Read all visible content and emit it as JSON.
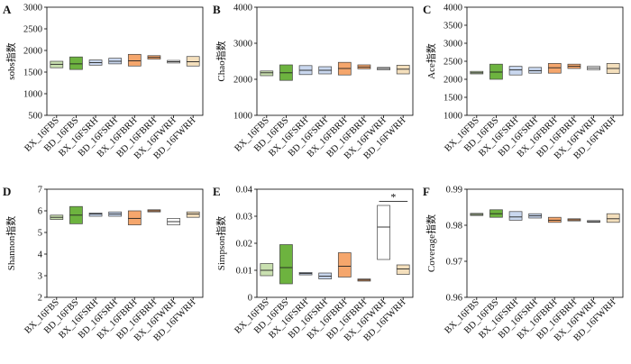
{
  "style": {
    "colors": {
      "lightgreen": "#c9e0b0",
      "green": "#6db33f",
      "lightblue": "#c9d7ee",
      "orange": "#f5a66c",
      "whitebox": "#ffffff",
      "beige": "#f4dfbc",
      "outline": "#444444",
      "median": "#222222"
    }
  },
  "chart_data": [
    {
      "type": "box",
      "panel_label": "A",
      "ylabel": "sobs指数",
      "ylim": [
        500,
        3000
      ],
      "yticks": [
        "500",
        "1000",
        "1500",
        "2000",
        "2500",
        "3000"
      ],
      "categories": [
        "BX_16FBS",
        "BD_16FBS",
        "BX_16FSRH",
        "BD_16FSRH",
        "BX_16FBRH",
        "BD_16FBRH",
        "BX_16FWRH",
        "BD_16FWRH"
      ],
      "boxes": [
        {
          "q1": 1600,
          "median": 1680,
          "q3": 1750,
          "color": "lightgreen"
        },
        {
          "q1": 1560,
          "median": 1690,
          "q3": 1850,
          "color": "green"
        },
        {
          "q1": 1660,
          "median": 1720,
          "q3": 1780,
          "color": "lightblue"
        },
        {
          "q1": 1690,
          "median": 1750,
          "q3": 1820,
          "color": "lightblue"
        },
        {
          "q1": 1640,
          "median": 1760,
          "q3": 1910,
          "color": "orange"
        },
        {
          "q1": 1800,
          "median": 1840,
          "q3": 1880,
          "color": "orange"
        },
        {
          "q1": 1710,
          "median": 1740,
          "q3": 1770,
          "color": "whitebox"
        },
        {
          "q1": 1640,
          "median": 1740,
          "q3": 1860,
          "color": "beige"
        }
      ]
    },
    {
      "type": "box",
      "panel_label": "B",
      "ylabel": "Chao指数",
      "ylim": [
        1000,
        4000
      ],
      "yticks": [
        "1000",
        "2000",
        "3000",
        "4000"
      ],
      "categories": [
        "BX_16FBS",
        "BD_16FBS",
        "BX_16FSRH",
        "BD_16FSRH",
        "BX_16FBRH",
        "BD_16FBRH",
        "BX_16FWRH",
        "BD_16FWRH"
      ],
      "boxes": [
        {
          "q1": 2100,
          "median": 2180,
          "q3": 2230,
          "color": "lightgreen"
        },
        {
          "q1": 1970,
          "median": 2180,
          "q3": 2400,
          "color": "green"
        },
        {
          "q1": 2130,
          "median": 2250,
          "q3": 2380,
          "color": "lightblue"
        },
        {
          "q1": 2150,
          "median": 2250,
          "q3": 2350,
          "color": "lightblue"
        },
        {
          "q1": 2120,
          "median": 2300,
          "q3": 2470,
          "color": "orange"
        },
        {
          "q1": 2290,
          "median": 2340,
          "q3": 2400,
          "color": "orange"
        },
        {
          "q1": 2260,
          "median": 2300,
          "q3": 2330,
          "color": "whitebox"
        },
        {
          "q1": 2150,
          "median": 2280,
          "q3": 2390,
          "color": "beige"
        }
      ]
    },
    {
      "type": "box",
      "panel_label": "C",
      "ylabel": "Ace指数",
      "ylim": [
        1000,
        4000
      ],
      "yticks": [
        "1000",
        "1500",
        "2000",
        "2500",
        "3000",
        "3500",
        "4000"
      ],
      "categories": [
        "BX_16FBS",
        "BD_16FBS",
        "BX_16FSRH",
        "BD_16FSRH",
        "BX_16FBRH",
        "BD_16FBRH",
        "BX_16FWRH",
        "BD_16FWRH"
      ],
      "boxes": [
        {
          "q1": 2150,
          "median": 2180,
          "q3": 2220,
          "color": "lightgreen"
        },
        {
          "q1": 2000,
          "median": 2200,
          "q3": 2420,
          "color": "green"
        },
        {
          "q1": 2120,
          "median": 2260,
          "q3": 2360,
          "color": "lightblue"
        },
        {
          "q1": 2170,
          "median": 2240,
          "q3": 2330,
          "color": "lightblue"
        },
        {
          "q1": 2170,
          "median": 2320,
          "q3": 2440,
          "color": "orange"
        },
        {
          "q1": 2300,
          "median": 2360,
          "q3": 2420,
          "color": "orange"
        },
        {
          "q1": 2260,
          "median": 2310,
          "q3": 2360,
          "color": "whitebox"
        },
        {
          "q1": 2160,
          "median": 2300,
          "q3": 2440,
          "color": "beige"
        }
      ]
    },
    {
      "type": "box",
      "panel_label": "D",
      "ylabel": "Shannon指数",
      "ylim": [
        2,
        7
      ],
      "yticks": [
        "2",
        "3",
        "4",
        "5",
        "6",
        "7"
      ],
      "categories": [
        "BX_16FBS",
        "BD_16FBS",
        "BX_16FSRH",
        "BD_16FSRH",
        "BX_16FBRH",
        "BD_16FBRH",
        "BX_16FWRH",
        "BD_16FWRH"
      ],
      "boxes": [
        {
          "q1": 5.6,
          "median": 5.7,
          "q3": 5.8,
          "color": "lightgreen"
        },
        {
          "q1": 5.4,
          "median": 5.8,
          "q3": 6.2,
          "color": "green"
        },
        {
          "q1": 5.75,
          "median": 5.85,
          "q3": 5.9,
          "color": "lightblue"
        },
        {
          "q1": 5.75,
          "median": 5.85,
          "q3": 5.95,
          "color": "lightblue"
        },
        {
          "q1": 5.35,
          "median": 5.65,
          "q3": 6.0,
          "color": "orange"
        },
        {
          "q1": 5.95,
          "median": 6.0,
          "q3": 6.05,
          "color": "orange"
        },
        {
          "q1": 5.35,
          "median": 5.5,
          "q3": 5.65,
          "color": "whitebox"
        },
        {
          "q1": 5.7,
          "median": 5.85,
          "q3": 5.95,
          "color": "beige"
        }
      ]
    },
    {
      "type": "box",
      "panel_label": "E",
      "ylabel": "Simpson指数",
      "ylim": [
        0,
        0.04
      ],
      "yticks": [
        "0",
        "0.01",
        "0.02",
        "0.03",
        "0.04"
      ],
      "categories": [
        "BX_16FBS",
        "BD_16FBS",
        "BX_16FSRH",
        "BD_16FSRH",
        "BX_16FBRH",
        "BD_16FBRH",
        "BX_16FWRH",
        "BD_16FWRH"
      ],
      "boxes": [
        {
          "q1": 0.008,
          "median": 0.01,
          "q3": 0.0125,
          "color": "lightgreen"
        },
        {
          "q1": 0.005,
          "median": 0.011,
          "q3": 0.0195,
          "color": "green"
        },
        {
          "q1": 0.0083,
          "median": 0.0088,
          "q3": 0.0092,
          "color": "lightblue"
        },
        {
          "q1": 0.0068,
          "median": 0.0078,
          "q3": 0.009,
          "color": "lightblue"
        },
        {
          "q1": 0.0075,
          "median": 0.0115,
          "q3": 0.0165,
          "color": "orange"
        },
        {
          "q1": 0.006,
          "median": 0.0064,
          "q3": 0.0068,
          "color": "orange"
        },
        {
          "q1": 0.014,
          "median": 0.026,
          "q3": 0.034,
          "color": "whitebox"
        },
        {
          "q1": 0.0085,
          "median": 0.0105,
          "q3": 0.012,
          "color": "beige"
        }
      ],
      "significance": {
        "from": 6,
        "to": 7,
        "label": "*",
        "y": 0.0355
      }
    },
    {
      "type": "box",
      "panel_label": "F",
      "ylabel": "Coverage指数",
      "ylim": [
        0.96,
        0.99
      ],
      "yticks": [
        "0.96",
        "0.97",
        "0.98",
        "0.99"
      ],
      "categories": [
        "BX_16FBS",
        "BD_16FBS",
        "BX_16FSRH",
        "BD_16FSRH",
        "BX_16FBRH",
        "BD_16FBRH",
        "BX_16FWRH",
        "BD_16FWRH"
      ],
      "boxes": [
        {
          "q1": 0.9827,
          "median": 0.983,
          "q3": 0.9833,
          "color": "lightgreen"
        },
        {
          "q1": 0.9822,
          "median": 0.9832,
          "q3": 0.9843,
          "color": "green"
        },
        {
          "q1": 0.9814,
          "median": 0.9823,
          "q3": 0.9838,
          "color": "lightblue"
        },
        {
          "q1": 0.982,
          "median": 0.9826,
          "q3": 0.9832,
          "color": "lightblue"
        },
        {
          "q1": 0.9808,
          "median": 0.9814,
          "q3": 0.9822,
          "color": "orange"
        },
        {
          "q1": 0.9812,
          "median": 0.9815,
          "q3": 0.9818,
          "color": "orange"
        },
        {
          "q1": 0.9808,
          "median": 0.981,
          "q3": 0.9813,
          "color": "whitebox"
        },
        {
          "q1": 0.9808,
          "median": 0.9818,
          "q3": 0.9832,
          "color": "beige"
        }
      ]
    }
  ]
}
